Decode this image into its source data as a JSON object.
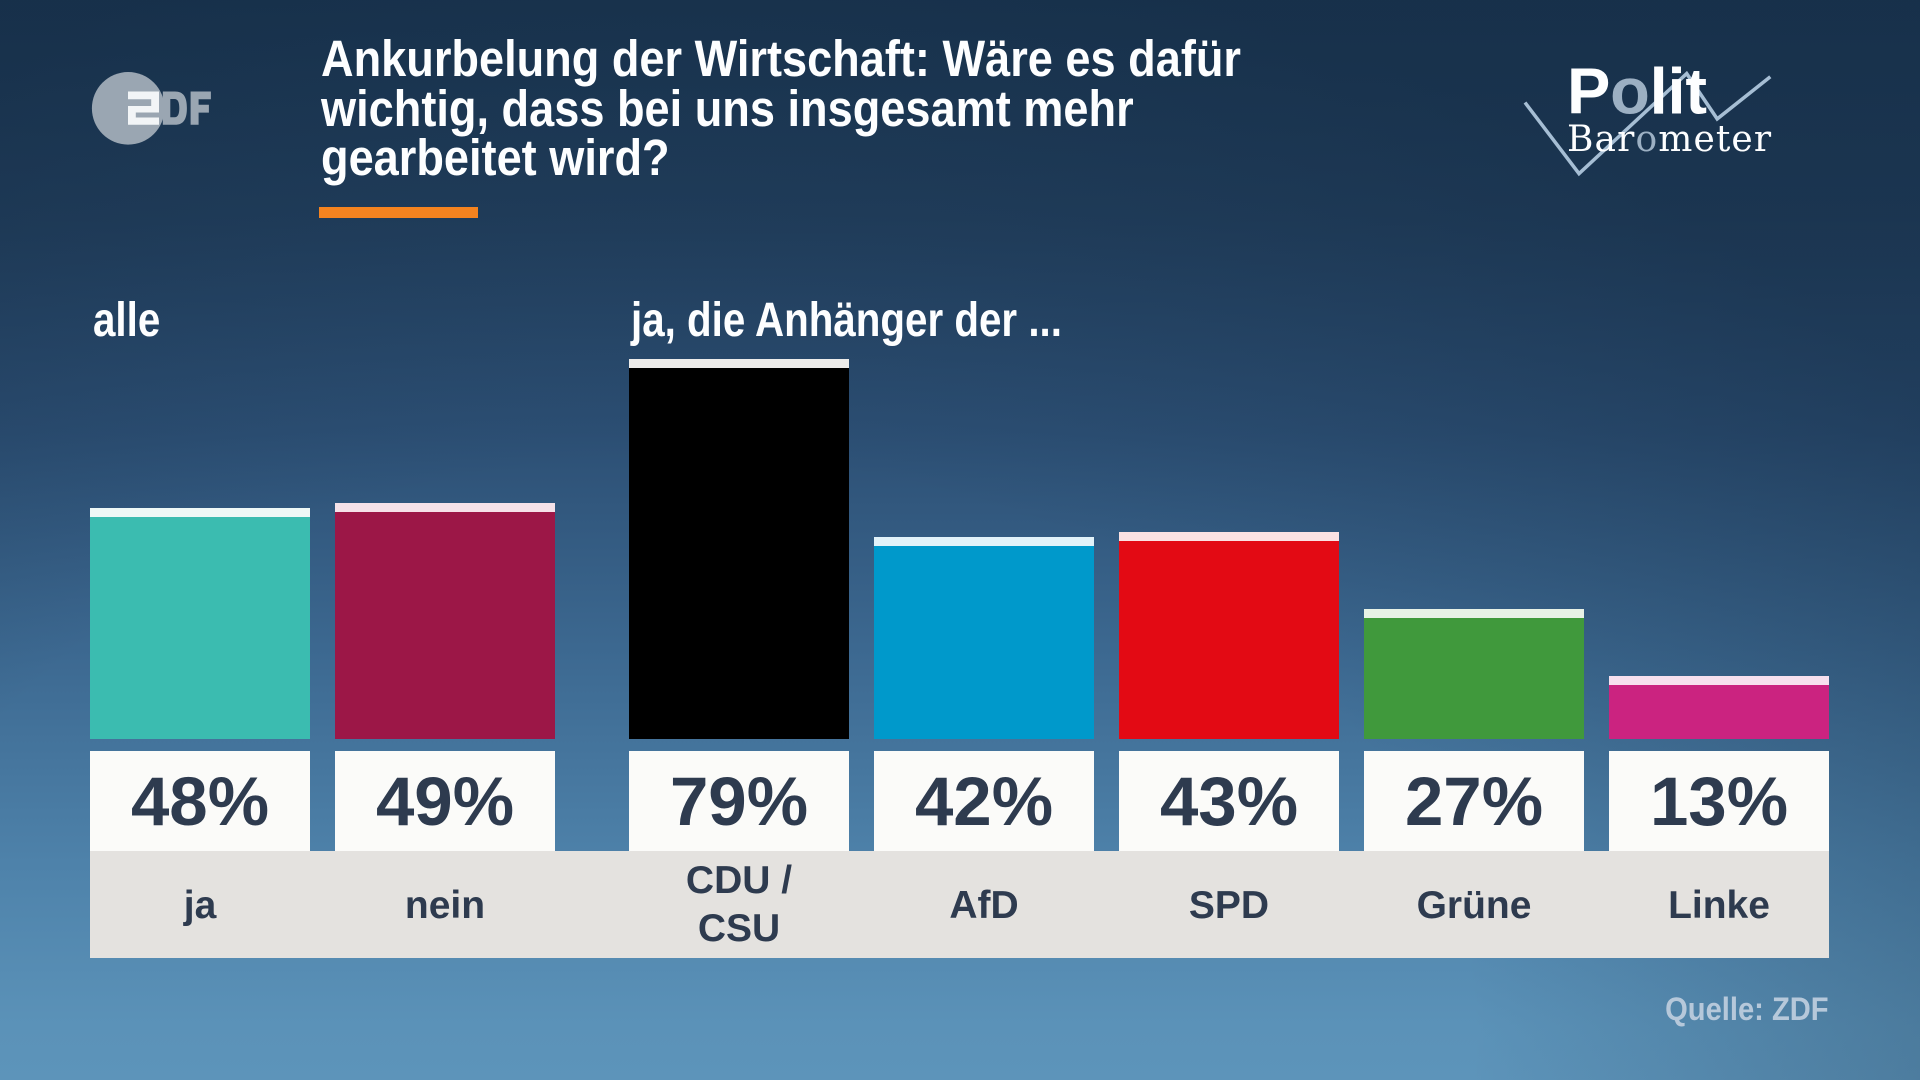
{
  "colors": {
    "accent_orange": "#f5831f",
    "text_dark": "#2e3b4f",
    "text_light": "#fdfeff",
    "source_text": "#b6c8da",
    "band_background": "#e4e2df",
    "value_box_background": "#fbfbf9",
    "zdf_logo_gray": "#9aa6b2",
    "logo_accent_gray": "#9cb0c3",
    "checkmark_line": "#a6bed4"
  },
  "header": {
    "zdf_logo": {
      "text": "2DF"
    },
    "title": "Ankurbelung der Wirtschaft: Wäre es dafür\nwichtig, dass bei uns insgesamt mehr\ngearbeitet wird?",
    "politbarometer": {
      "polit_p": "P",
      "polit_o": "o",
      "polit_lit": "lit",
      "baro_bar": "Bar",
      "baro_o": "o",
      "baro_meter": "meter"
    }
  },
  "group_labels": {
    "all": "alle",
    "parties": "ja, die Anhänger der ..."
  },
  "source": {
    "label": "Quelle: ZDF"
  },
  "chart_data": {
    "type": "bar",
    "title": "Ankurbelung der Wirtschaft: Wäre es dafür wichtig, dass bei uns insgesamt mehr gearbeitet wird?",
    "groups": [
      {
        "label": "alle",
        "categories": [
          "ja",
          "nein"
        ]
      },
      {
        "label": "ja, die Anhänger der ...",
        "categories": [
          "CDU/CSU",
          "AfD",
          "SPD",
          "Grüne",
          "Linke"
        ]
      }
    ],
    "categories": [
      "ja",
      "nein",
      "CDU/\nCSU",
      "AfD",
      "SPD",
      "Grüne",
      "Linke"
    ],
    "values": [
      48,
      49,
      79,
      42,
      43,
      27,
      13
    ],
    "value_labels": [
      "48%",
      "49%",
      "79%",
      "42%",
      "43%",
      "27%",
      "13%"
    ],
    "bar_colors": [
      "#3bbcb0",
      "#9c1747",
      "#000000",
      "#0099cb",
      "#e30a14",
      "#40993c",
      "#cb2380"
    ],
    "bar_cap_colors": [
      "#eef8f6",
      "#f5e2e9",
      "#edecea",
      "#e2f2f9",
      "#fbe2e3",
      "#e8f2e6",
      "#f7e0ee"
    ],
    "ylim": [
      0,
      100
    ],
    "unit": "%",
    "grid": false,
    "legend": false
  }
}
